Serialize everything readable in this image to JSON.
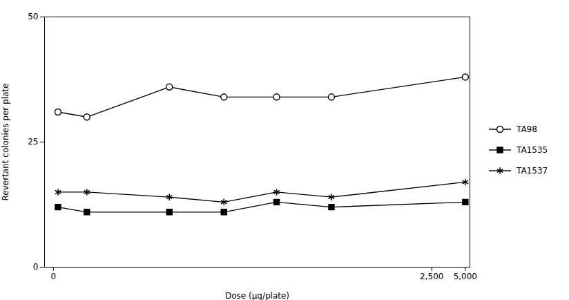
{
  "chart_data": {
    "type": "line",
    "x": [
      0.1,
      1,
      10,
      33,
      100,
      313,
      5000
    ],
    "series": [
      {
        "name": "TA98",
        "color": "#000000",
        "marker": "circle",
        "values": [
          31,
          30,
          36,
          34,
          34,
          34,
          38
        ]
      },
      {
        "name": "TA1535",
        "color": "#000000",
        "marker": "square",
        "values": [
          12,
          11,
          11,
          11,
          13,
          12,
          13
        ]
      },
      {
        "name": "TA1537",
        "color": "#000000",
        "marker": "asterisk",
        "values": [
          15,
          15,
          14,
          13,
          15,
          14,
          17
        ]
      }
    ],
    "xlabel": "Dose (μg/plate)",
    "ylabel": "Revertant colonies per plate",
    "xlim": [
      -0.2,
      5500
    ],
    "xticks": [
      0,
      {
        "value": 2500,
        "label": "2,500"
      },
      {
        "value": 5000,
        "label": "5,000"
      }
    ],
    "ylim": [
      0,
      50
    ],
    "yticks": [
      0,
      25,
      50
    ],
    "log": "x",
    "grid": false,
    "legend": "right"
  }
}
